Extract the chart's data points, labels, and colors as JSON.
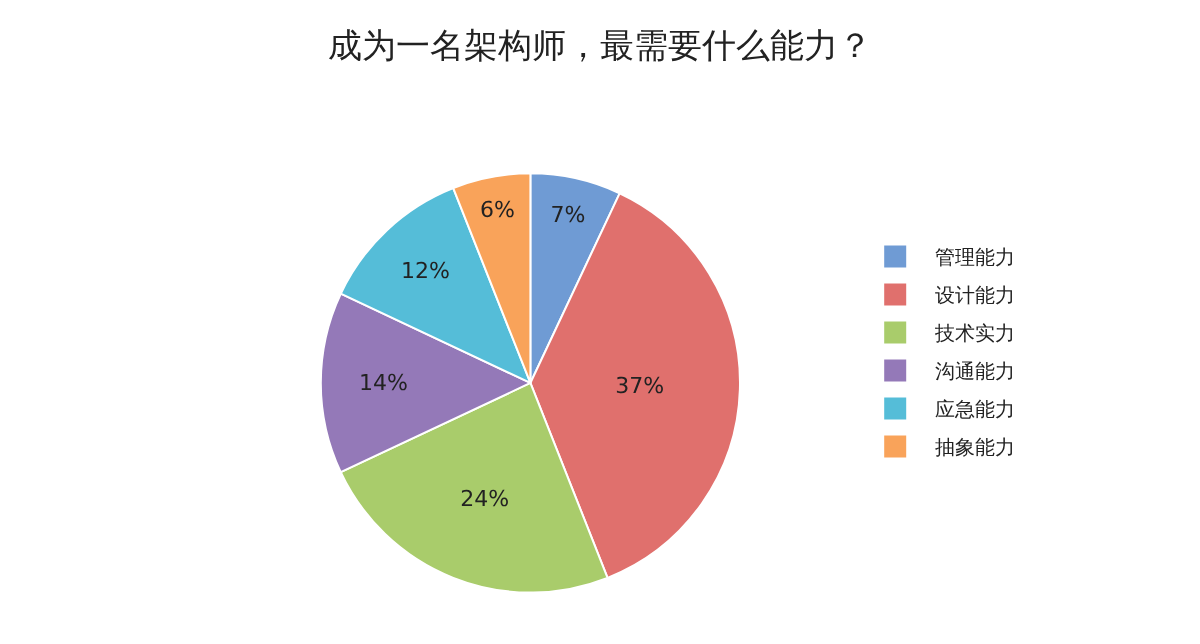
{
  "chart_data": {
    "type": "pie",
    "title": "成为一名架构师，最需要什么能力？",
    "categories": [
      "管理能力",
      "设计能力",
      "技术实力",
      "沟通能力",
      "应急能力",
      "抽象能力"
    ],
    "values": [
      7,
      37,
      24,
      14,
      12,
      6
    ],
    "value_labels": [
      "7%",
      "37%",
      "24%",
      "14%",
      "12%",
      "6%"
    ],
    "colors": [
      "#6f9bd4",
      "#e0706d",
      "#a9cc6b",
      "#9479b8",
      "#55bdd8",
      "#f9a35a"
    ],
    "legend": "right"
  }
}
